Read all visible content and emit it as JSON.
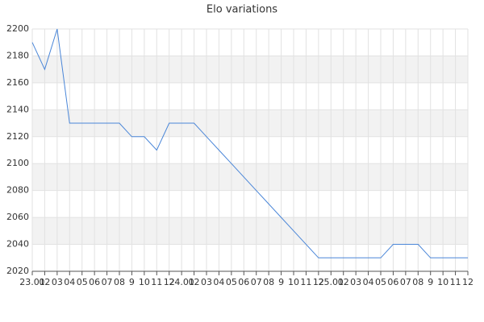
{
  "chart_data": {
    "type": "line",
    "title": "Elo variations",
    "categories": [
      "23.01",
      "02",
      "03",
      "04",
      "05",
      "06",
      "07",
      "08",
      "9",
      "10",
      "11",
      "12",
      "24.01",
      "02",
      "03",
      "04",
      "05",
      "06",
      "07",
      "08",
      "9",
      "10",
      "11",
      "12",
      "25.01",
      "02",
      "03",
      "04",
      "05",
      "06",
      "07",
      "08",
      "9",
      "10",
      "11",
      "12"
    ],
    "series": [
      {
        "name": "Elo",
        "color": "#4a86d8",
        "values": [
          2190,
          2170,
          2200,
          2130,
          2130,
          2130,
          2130,
          2130,
          2120,
          2120,
          2110,
          2130,
          2130,
          2130,
          2120,
          2110,
          2100,
          2090,
          2080,
          2070,
          2060,
          2050,
          2040,
          2030,
          2030,
          2030,
          2030,
          2030,
          2030,
          2040,
          2040,
          2040,
          2030,
          2030,
          2030,
          2030
        ]
      }
    ],
    "ylim": [
      2020,
      2200
    ],
    "yticks": [
      2020,
      2040,
      2060,
      2080,
      2100,
      2120,
      2140,
      2160,
      2180,
      2200
    ],
    "grid": true
  }
}
